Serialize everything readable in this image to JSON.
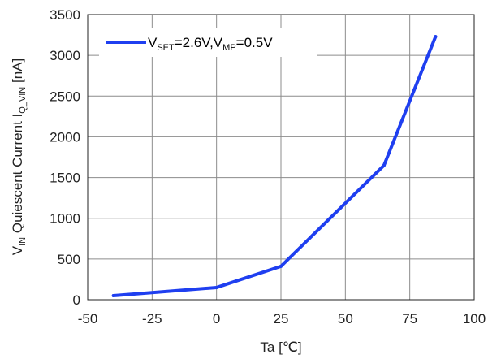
{
  "chart_data": {
    "type": "line",
    "x": [
      -40,
      0,
      25,
      65,
      85
    ],
    "series": [
      {
        "name": "VSET=2.6V,VMP=0.5V",
        "values": [
          50,
          150,
          410,
          1650,
          3230
        ],
        "color": "#1f3ff0"
      }
    ],
    "xlim": [
      -50,
      100
    ],
    "ylim": [
      0,
      3500
    ],
    "xticks": [
      "-50",
      "-25",
      "0",
      "25",
      "50",
      "75",
      "100"
    ],
    "yticks": [
      "0",
      "500",
      "1000",
      "1500",
      "2000",
      "2500",
      "3000",
      "3500"
    ],
    "xlabel": "Ta [℃]",
    "ylabel": {
      "part1": "V",
      "part1_sub": "IN",
      "part2": " Quiescent Current I",
      "part2_sub": "Q_VIN",
      "part3": " [nA]"
    },
    "legend": {
      "placement": "top-left",
      "parts": {
        "a": "V",
        "a_sub": "SET",
        "b": "=2.6V,V",
        "b_sub": "MP",
        "c": "=0.5V"
      }
    },
    "grid": true
  }
}
